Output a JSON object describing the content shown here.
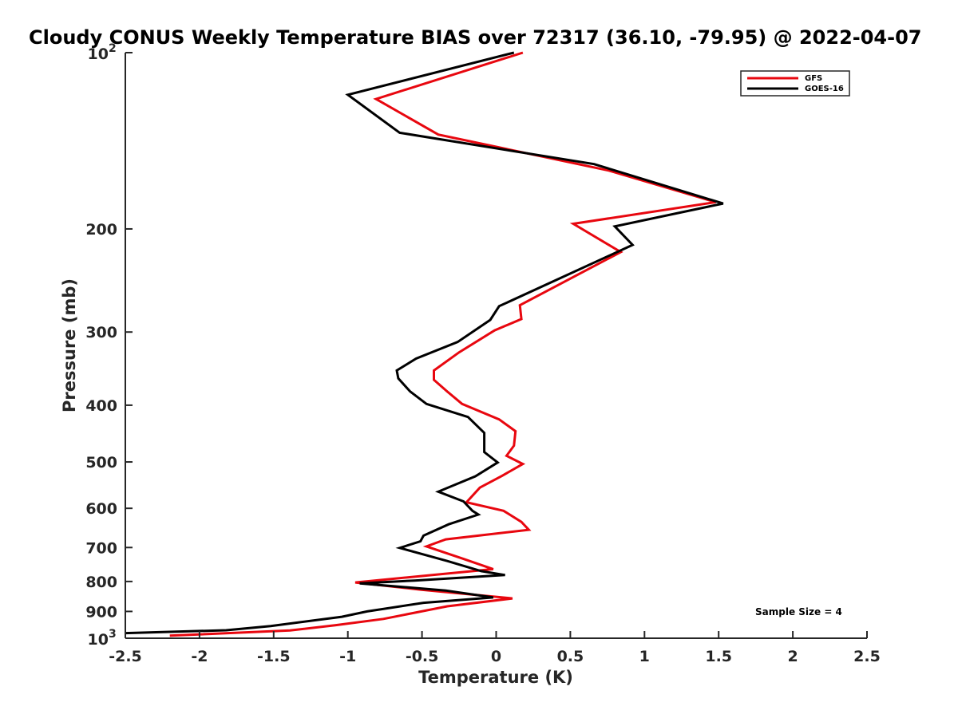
{
  "chart_data": {
    "type": "line",
    "title": "Cloudy CONUS Weekly Temperature BIAS over 72317 (36.10, -79.95) @ 2022-04-07",
    "xlabel": "Temperature (K)",
    "ylabel": "Pressure (mb)",
    "xlim": [
      -2.5,
      2.5
    ],
    "ylim": [
      100,
      1000
    ],
    "yscale": "log",
    "y_reversed": true,
    "x_ticks": [
      "-2.5",
      "-2",
      "-1.5",
      "-1",
      "-0.5",
      "0",
      "0.5",
      "1",
      "1.5",
      "2",
      "2.5"
    ],
    "x_tick_values": [
      -2.5,
      -2,
      -1.5,
      -1,
      -0.5,
      0,
      0.5,
      1,
      1.5,
      2,
      2.5
    ],
    "y_ticks": [
      {
        "value": 100,
        "base": "10",
        "exp": "2"
      },
      {
        "value": 200,
        "label": "200"
      },
      {
        "value": 300,
        "label": "300"
      },
      {
        "value": 400,
        "label": "400"
      },
      {
        "value": 500,
        "label": "500"
      },
      {
        "value": 600,
        "label": "600"
      },
      {
        "value": 700,
        "label": "700"
      },
      {
        "value": 800,
        "label": "800"
      },
      {
        "value": 900,
        "label": "900"
      },
      {
        "value": 1000,
        "base": "10",
        "exp": "3"
      }
    ],
    "legend_position": "top-right",
    "grid": false,
    "annotation": "Sample Size = 4",
    "series": [
      {
        "name": "GFS",
        "color": "#e8070f",
        "points": [
          [
            0.18,
            100
          ],
          [
            -0.81,
            120
          ],
          [
            -0.39,
            138
          ],
          [
            0.76,
            159
          ],
          [
            1.48,
            180
          ],
          [
            0.52,
            196
          ],
          [
            0.84,
            219
          ],
          [
            0.16,
            270
          ],
          [
            0.17,
            285
          ],
          [
            -0.01,
            298
          ],
          [
            -0.25,
            325
          ],
          [
            -0.42,
            349
          ],
          [
            -0.42,
            362
          ],
          [
            -0.33,
            379
          ],
          [
            -0.23,
            398
          ],
          [
            0.02,
            423
          ],
          [
            0.13,
            443
          ],
          [
            0.12,
            469
          ],
          [
            0.07,
            488
          ],
          [
            0.18,
            504
          ],
          [
            0.04,
            528
          ],
          [
            -0.11,
            553
          ],
          [
            -0.2,
            586
          ],
          [
            0.05,
            606
          ],
          [
            0.17,
            633
          ],
          [
            0.22,
            653
          ],
          [
            -0.34,
            678
          ],
          [
            -0.47,
            697
          ],
          [
            -0.22,
            732
          ],
          [
            -0.02,
            762
          ],
          [
            -0.95,
            803
          ],
          [
            -0.51,
            826
          ],
          [
            0.11,
            855
          ],
          [
            -0.33,
            882
          ],
          [
            -0.76,
            927
          ],
          [
            -1.08,
            950
          ],
          [
            -1.39,
            970
          ],
          [
            -2.2,
            990
          ]
        ]
      },
      {
        "name": "GOES-16",
        "color": "#000000",
        "points": [
          [
            0.12,
            100
          ],
          [
            -1.0,
            118
          ],
          [
            -0.65,
            137
          ],
          [
            0.66,
            155
          ],
          [
            1.53,
            181
          ],
          [
            0.8,
            198
          ],
          [
            0.92,
            213
          ],
          [
            0.02,
            271
          ],
          [
            -0.04,
            286
          ],
          [
            -0.26,
            312
          ],
          [
            -0.54,
            333
          ],
          [
            -0.67,
            349
          ],
          [
            -0.66,
            360
          ],
          [
            -0.58,
            379
          ],
          [
            -0.47,
            398
          ],
          [
            -0.19,
            419
          ],
          [
            -0.08,
            446
          ],
          [
            -0.08,
            481
          ],
          [
            0.01,
            501
          ],
          [
            -0.14,
            529
          ],
          [
            -0.39,
            562
          ],
          [
            -0.22,
            584
          ],
          [
            -0.16,
            606
          ],
          [
            -0.12,
            615
          ],
          [
            -0.32,
            639
          ],
          [
            -0.49,
            668
          ],
          [
            -0.51,
            683
          ],
          [
            -0.65,
            701
          ],
          [
            -0.33,
            738
          ],
          [
            -0.1,
            768
          ],
          [
            0.06,
            780
          ],
          [
            -0.55,
            797
          ],
          [
            -0.92,
            806
          ],
          [
            -0.34,
            829
          ],
          [
            -0.02,
            852
          ],
          [
            -0.49,
            870
          ],
          [
            -0.87,
            900
          ],
          [
            -1.04,
            919
          ],
          [
            -1.52,
            953
          ],
          [
            -1.82,
            969
          ],
          [
            -2.5,
            980
          ]
        ]
      }
    ]
  }
}
